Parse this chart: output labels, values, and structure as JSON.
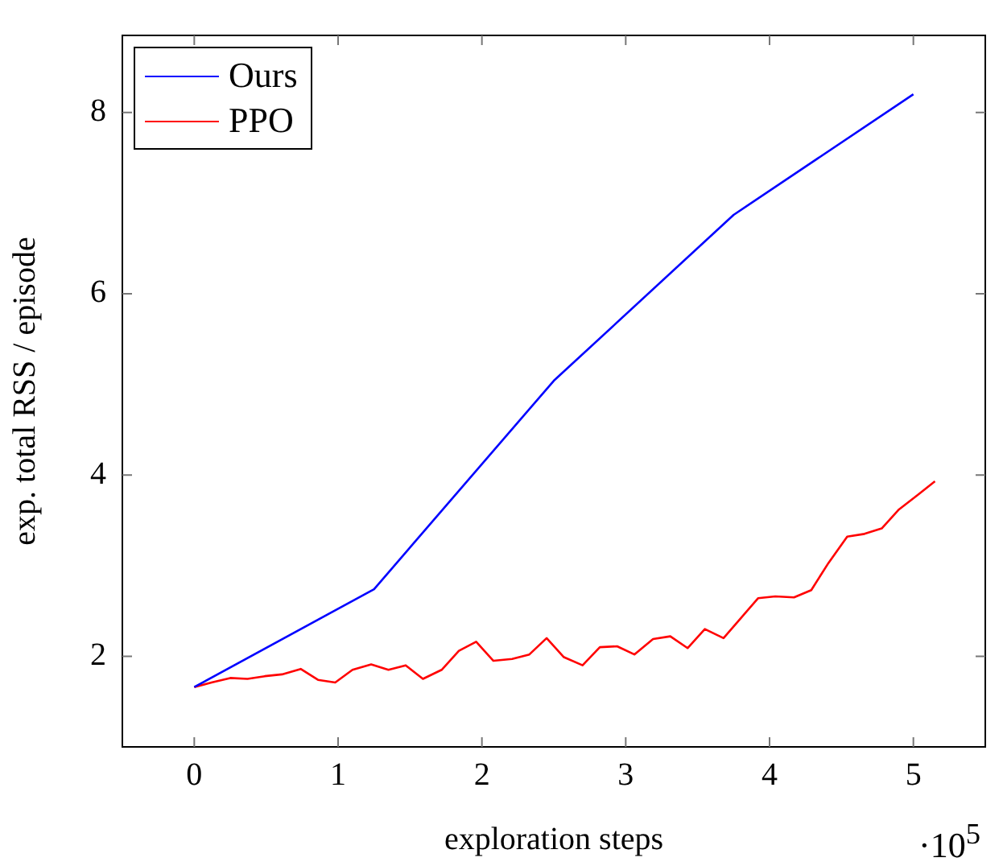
{
  "chart_data": {
    "type": "line",
    "xlabel": "exploration steps",
    "ylabel": "exp. total RSS / episode",
    "annotations": [
      "·10$^{5}$"
    ],
    "xlim": [
      -0.5,
      5.5
    ],
    "ylim": [
      1,
      8.85
    ],
    "xticks": [
      0,
      1,
      2,
      3,
      4,
      5
    ],
    "yticks": [
      2,
      4,
      6,
      8
    ],
    "grid": false,
    "legend": "top left",
    "marker": "none",
    "line_style": "solid",
    "series": [
      {
        "name": "Ours",
        "color": "#0000ff",
        "x": [
          0,
          1.25,
          2.5,
          3.75,
          5
        ],
        "values": [
          1.66,
          2.74,
          5.04,
          6.87,
          8.2
        ]
      },
      {
        "name": "PPO",
        "color": "#ff0000",
        "x": [
          0,
          0.12,
          0.25,
          0.37,
          0.49,
          0.61,
          0.74,
          0.86,
          0.98,
          1.1,
          1.23,
          1.35,
          1.47,
          1.59,
          1.72,
          1.84,
          1.96,
          2.08,
          2.21,
          2.33,
          2.45,
          2.57,
          2.7,
          2.82,
          2.94,
          3.06,
          3.19,
          3.31,
          3.43,
          3.55,
          3.68,
          3.8,
          3.92,
          4.04,
          4.17,
          4.29,
          4.41,
          4.54,
          4.66,
          4.78,
          4.9,
          5.03,
          5.15
        ],
        "values": [
          1.66,
          1.71,
          1.76,
          1.75,
          1.78,
          1.8,
          1.86,
          1.74,
          1.71,
          1.85,
          1.91,
          1.85,
          1.9,
          1.75,
          1.85,
          2.06,
          2.16,
          1.95,
          1.97,
          2.02,
          2.2,
          1.99,
          1.9,
          2.1,
          2.11,
          2.02,
          2.19,
          2.22,
          2.09,
          2.3,
          2.2,
          2.42,
          2.64,
          2.66,
          2.65,
          2.73,
          3.03,
          3.32,
          3.35,
          3.41,
          3.62,
          3.78,
          3.93
        ]
      }
    ]
  }
}
